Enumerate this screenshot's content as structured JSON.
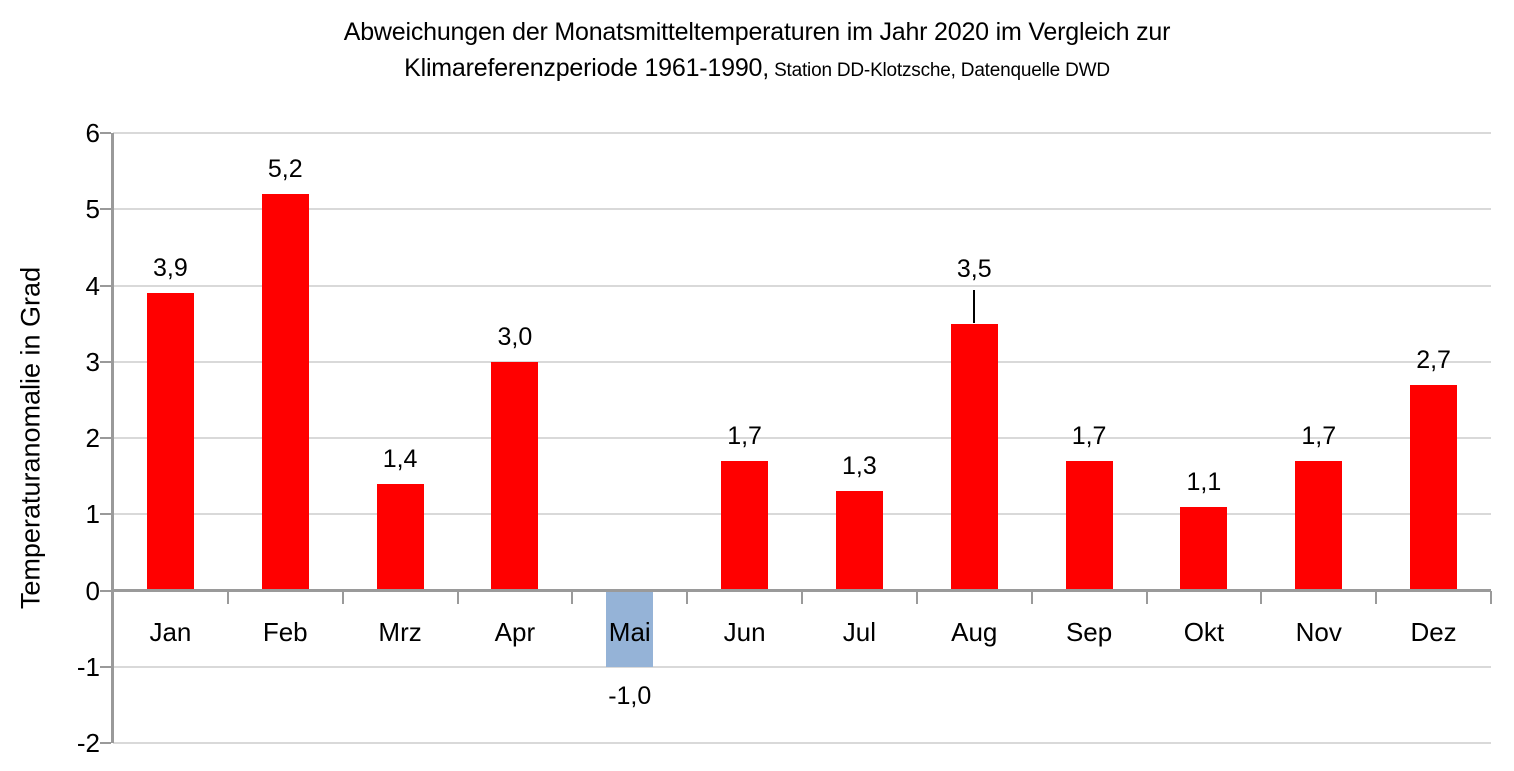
{
  "chart_data": {
    "type": "bar",
    "title": "Abweichungen der Monatsmitteltemperaturen im Jahr 2020 im Vergleich zur Klimareferenzperiode 1961-1990, Station DD-Klotzsche, Datenquelle DWD",
    "title_lines": {
      "line1": "Abweichungen der Monatsmitteltemperaturen im Jahr 2020 im Vergleich zur",
      "line2_main": "Klimareferenzperiode 1961-1990,",
      "line2_sub": " Station DD-Klotzsche, Datenquelle DWD"
    },
    "categories": [
      "Jan",
      "Feb",
      "Mrz",
      "Apr",
      "Mai",
      "Jun",
      "Jul",
      "Aug",
      "Sep",
      "Okt",
      "Nov",
      "Dez"
    ],
    "values": [
      3.9,
      5.2,
      1.4,
      3.0,
      -1.0,
      1.7,
      1.3,
      3.5,
      1.7,
      1.1,
      1.7,
      2.7
    ],
    "value_labels": [
      "3,9",
      "5,2",
      "1,4",
      "3,0",
      "-1,0",
      "1,7",
      "1,3",
      "3,5",
      "1,7",
      "1,1",
      "1,7",
      "2,7"
    ],
    "label_leader_line": [
      false,
      false,
      false,
      false,
      false,
      false,
      false,
      true,
      false,
      false,
      false,
      false
    ],
    "xlabel": "",
    "ylabel": "Temperaturanomalie in Grad",
    "ylim": [
      -2,
      6
    ],
    "yticks": [
      -2,
      -1,
      0,
      1,
      2,
      3,
      4,
      5,
      6
    ],
    "ytick_labels": [
      "-2",
      "-1",
      "0",
      "1",
      "2",
      "3",
      "4",
      "5",
      "6"
    ],
    "grid": true,
    "legend": false,
    "colors": {
      "positive_bar": "#ff0000",
      "negative_bar": "#95b3d7",
      "gridline": "#d9d9d9",
      "axis_line": "#9a9a9a",
      "text": "#000000",
      "background": "#ffffff"
    }
  }
}
